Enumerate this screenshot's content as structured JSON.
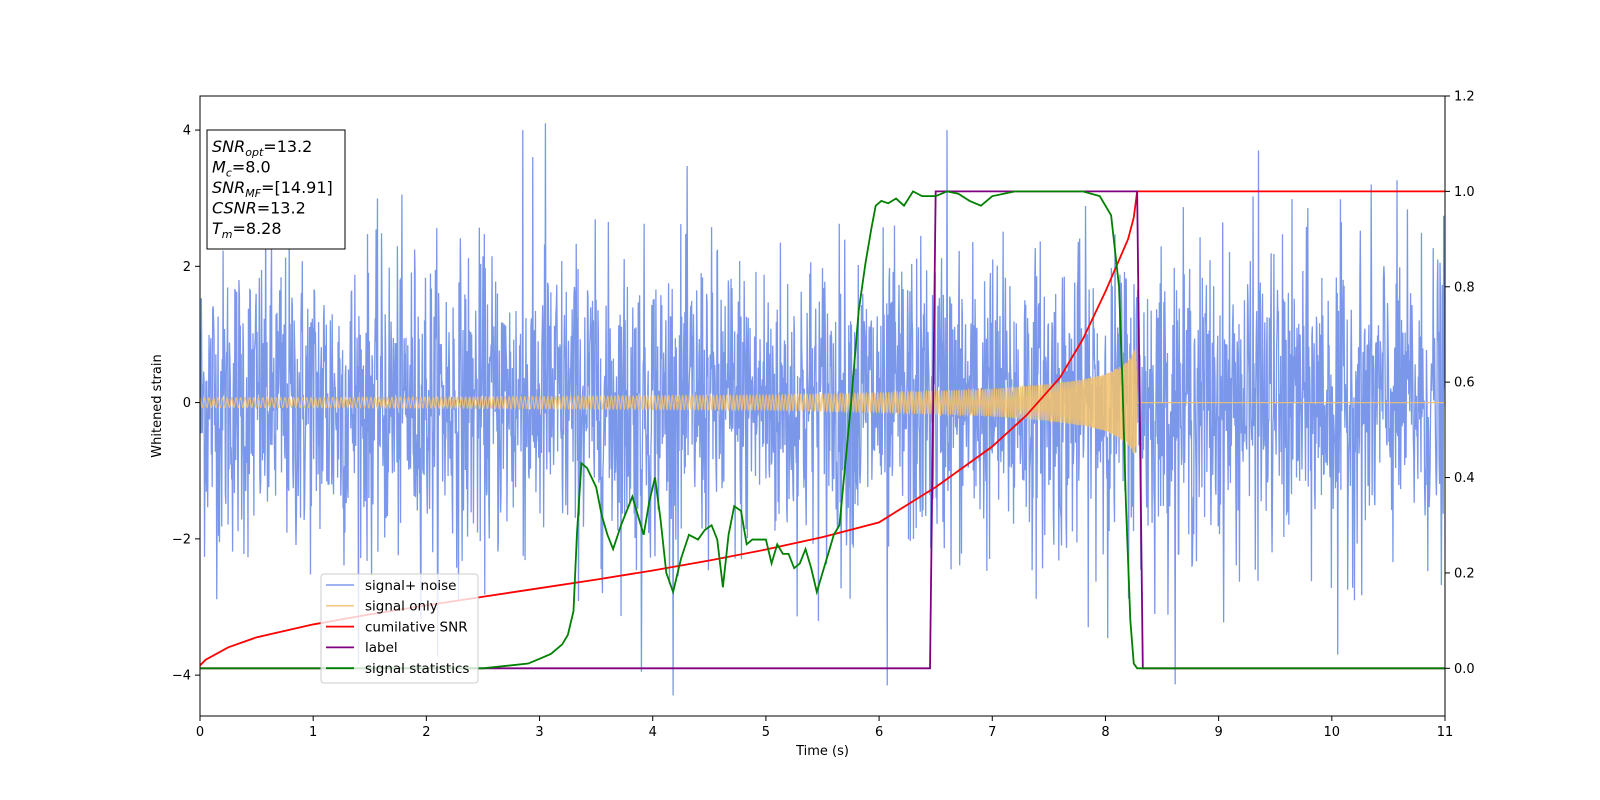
{
  "chart_data": {
    "type": "line",
    "xlabel": "Time (s)",
    "ylabel": "Whitened strain",
    "xlim": [
      0,
      11
    ],
    "ylim_left": [
      -4.6,
      4.5
    ],
    "ylim_right": [
      -0.1,
      1.2
    ],
    "x_ticks": [
      "0",
      "1",
      "2",
      "3",
      "4",
      "5",
      "6",
      "7",
      "8",
      "9",
      "10",
      "11"
    ],
    "y_ticks_left": [
      "−4",
      "−2",
      "0",
      "2",
      "4"
    ],
    "y_ticks_right": [
      "0.0",
      "0.2",
      "0.4",
      "0.6",
      "0.8",
      "1.0",
      "1.2"
    ],
    "grid": false,
    "legend_position": "lower-left",
    "info_box": [
      {
        "main": "SNR",
        "sub": "opt",
        "rest": "=13.2"
      },
      {
        "main": "M",
        "sub": "c",
        "rest": "=8.0"
      },
      {
        "main": "SNR",
        "sub": "MF",
        "rest": "=[14.91]"
      },
      {
        "main": "CSNR",
        "sub": "",
        "rest": "=13.2"
      },
      {
        "main": "T",
        "sub": "m",
        "rest": "=8.28"
      }
    ],
    "series": [
      {
        "name": "signal+ noise",
        "axis": "left",
        "color": "#6f8ee8",
        "kind": "noise",
        "sampling_rate_hz": 250,
        "approx_std": 1.1,
        "notable_peaks": [
          [
            3.05,
            4.1
          ],
          [
            2.85,
            4.0
          ],
          [
            6.6,
            4.0
          ],
          [
            9.35,
            3.7
          ],
          [
            6.07,
            -4.15
          ],
          [
            3.9,
            -3.95
          ],
          [
            10.05,
            -3.7
          ]
        ]
      },
      {
        "name": "signal only",
        "axis": "left",
        "color": "#f5c26b",
        "kind": "chirp",
        "merger_time": 8.28,
        "envelope": {
          "x": [
            0,
            2,
            4,
            5,
            6,
            6.5,
            7,
            7.5,
            7.8,
            8.0,
            8.1,
            8.2,
            8.27,
            8.28,
            11
          ],
          "y": [
            0.07,
            0.08,
            0.1,
            0.11,
            0.14,
            0.17,
            0.2,
            0.27,
            0.34,
            0.42,
            0.5,
            0.62,
            0.8,
            0.0,
            0.0
          ]
        }
      },
      {
        "name": "cumilative SNR",
        "axis": "right",
        "color": "#ff0000",
        "x": [
          0,
          0.05,
          0.25,
          0.5,
          1,
          1.5,
          2,
          2.5,
          3,
          3.5,
          4,
          4.5,
          5,
          5.5,
          6,
          6.5,
          7,
          7.3,
          7.6,
          7.8,
          8.0,
          8.1,
          8.2,
          8.25,
          8.28,
          8.29,
          11
        ],
        "y": [
          0.006,
          0.018,
          0.044,
          0.065,
          0.092,
          0.113,
          0.132,
          0.15,
          0.168,
          0.186,
          0.205,
          0.226,
          0.249,
          0.275,
          0.306,
          0.38,
          0.465,
          0.53,
          0.61,
          0.69,
          0.79,
          0.845,
          0.9,
          0.945,
          1.0,
          1.0,
          1.0
        ]
      },
      {
        "name": "label",
        "axis": "right",
        "color": "#800080",
        "x": [
          0,
          6.45,
          6.5,
          8.28,
          8.33,
          11
        ],
        "y": [
          0,
          0,
          1,
          1,
          0,
          0
        ]
      },
      {
        "name": "signal statistics",
        "axis": "right",
        "color": "#008000",
        "x": [
          0,
          2.5,
          2.9,
          3.0,
          3.1,
          3.2,
          3.25,
          3.3,
          3.33,
          3.37,
          3.42,
          3.5,
          3.55,
          3.6,
          3.65,
          3.72,
          3.77,
          3.82,
          3.87,
          3.92,
          3.97,
          4.02,
          4.07,
          4.12,
          4.18,
          4.25,
          4.32,
          4.4,
          4.46,
          4.52,
          4.57,
          4.62,
          4.67,
          4.72,
          4.78,
          4.83,
          4.88,
          4.95,
          5.0,
          5.05,
          5.1,
          5.15,
          5.2,
          5.25,
          5.3,
          5.35,
          5.4,
          5.45,
          5.5,
          5.55,
          5.6,
          5.65,
          5.75,
          5.82,
          5.88,
          5.93,
          5.97,
          6.02,
          6.08,
          6.15,
          6.22,
          6.3,
          6.38,
          6.5,
          6.6,
          6.7,
          6.8,
          6.9,
          7.0,
          7.2,
          7.5,
          7.8,
          7.95,
          8.05,
          8.12,
          8.15,
          8.18,
          8.22,
          8.25,
          8.28,
          8.3,
          8.35,
          8.4,
          11
        ],
        "y": [
          0.0,
          0.0,
          0.01,
          0.02,
          0.03,
          0.05,
          0.07,
          0.12,
          0.28,
          0.43,
          0.42,
          0.38,
          0.32,
          0.28,
          0.25,
          0.3,
          0.33,
          0.36,
          0.32,
          0.28,
          0.35,
          0.4,
          0.31,
          0.2,
          0.16,
          0.23,
          0.28,
          0.27,
          0.29,
          0.3,
          0.27,
          0.17,
          0.28,
          0.34,
          0.33,
          0.26,
          0.27,
          0.27,
          0.27,
          0.22,
          0.26,
          0.24,
          0.24,
          0.21,
          0.22,
          0.25,
          0.21,
          0.16,
          0.2,
          0.24,
          0.28,
          0.3,
          0.55,
          0.75,
          0.85,
          0.92,
          0.97,
          0.98,
          0.975,
          0.985,
          0.97,
          1.0,
          0.99,
          0.99,
          1.0,
          0.995,
          0.98,
          0.97,
          0.99,
          1.0,
          1.0,
          1.0,
          0.99,
          0.95,
          0.8,
          0.6,
          0.35,
          0.1,
          0.01,
          0.0,
          0.0,
          0.0,
          0.0,
          0.0
        ]
      }
    ]
  }
}
